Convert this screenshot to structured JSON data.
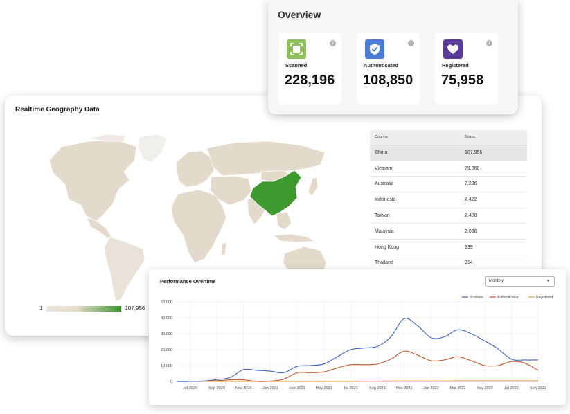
{
  "overview": {
    "title": "Overview",
    "stats": [
      {
        "label": "Scanned",
        "value": "228,196",
        "icon": "scan-icon",
        "color": "#8fbf5a"
      },
      {
        "label": "Authenticated",
        "value": "108,850",
        "icon": "shield-check-icon",
        "color": "#4a7bd8"
      },
      {
        "label": "Registered",
        "value": "75,958",
        "icon": "heart-icon",
        "color": "#5a3b9a"
      }
    ]
  },
  "geography": {
    "title": "Realtime Geography Data",
    "legend": {
      "min": "1",
      "max": "107,956"
    },
    "table": {
      "headers": [
        "Country",
        "Scans"
      ],
      "rows": [
        {
          "country": "China",
          "scans": "107,956"
        },
        {
          "country": "Vietnam",
          "scans": "79,068"
        },
        {
          "country": "Australia",
          "scans": "7,236"
        },
        {
          "country": "Indonesia",
          "scans": "2,422"
        },
        {
          "country": "Taiwan",
          "scans": "2,408"
        },
        {
          "country": "Malaysia",
          "scans": "2,036"
        },
        {
          "country": "Hong Kong",
          "scans": "939"
        },
        {
          "country": "Thailand",
          "scans": "914"
        }
      ]
    },
    "colors": {
      "low": "#ede6dc",
      "high": "#3e9a2e"
    }
  },
  "performance": {
    "title": "Performance Overtime",
    "period": "Monthly"
  },
  "chart_data": {
    "type": "line",
    "title": "Performance Overtime",
    "ylim": [
      0,
      50000
    ],
    "yticks": [
      "0",
      "10,000",
      "20,000",
      "30,000",
      "40,000",
      "50,000"
    ],
    "x": [
      "Jun 2020",
      "Jul 2020",
      "Aug 2020",
      "Sep 2020",
      "Oct 2020",
      "Nov 2020",
      "Dec 2020",
      "Jan 2021",
      "Feb 2021",
      "Mar 2021",
      "Apr 2021",
      "May 2021",
      "Jun 2021",
      "Jul 2021",
      "Aug 2021",
      "Sep 2021",
      "Oct 2021",
      "Nov 2021",
      "Dec 2021",
      "Jan 2022",
      "Feb 2022",
      "Mar 2022",
      "Apr 2022",
      "May 2022",
      "Jun 2022",
      "Jul 2022",
      "Aug 2022",
      "Sep 2022"
    ],
    "xtick_labels": [
      "Jul 2020",
      "Sep 2020",
      "Nov 2020",
      "Jan 2021",
      "Mar 2021",
      "May 2021",
      "Jul 2021",
      "Sep 2021",
      "Nov 2021",
      "Jan 2022",
      "Mar 2022",
      "May 2022",
      "Jul 2022",
      "Sep 2022"
    ],
    "legend_position": "top-right",
    "grid": true,
    "series": [
      {
        "name": "Scanned",
        "color": "#3a63c4",
        "values": [
          0,
          0,
          300,
          1200,
          2500,
          7500,
          7000,
          6500,
          5500,
          9500,
          10000,
          11000,
          15500,
          20000,
          21000,
          22000,
          28000,
          39500,
          35000,
          27500,
          28000,
          32500,
          30000,
          25500,
          20500,
          14000,
          13500,
          13500
        ]
      },
      {
        "name": "Authenticated",
        "color": "#c8552b",
        "values": [
          0,
          0,
          200,
          500,
          1000,
          1000,
          0,
          200,
          1500,
          5500,
          5500,
          6000,
          8500,
          10500,
          10500,
          11000,
          14000,
          19000,
          16500,
          13000,
          13500,
          15500,
          13000,
          10000,
          10000,
          12500,
          11500,
          7000
        ]
      },
      {
        "name": "Registered",
        "color": "#e69a2e",
        "values": [
          0,
          0,
          0,
          0,
          0,
          0,
          0,
          0,
          0,
          0,
          0,
          0,
          100,
          100,
          200,
          200,
          300,
          300,
          300,
          300,
          300,
          400,
          400,
          400,
          400,
          400,
          400,
          400
        ]
      }
    ]
  }
}
